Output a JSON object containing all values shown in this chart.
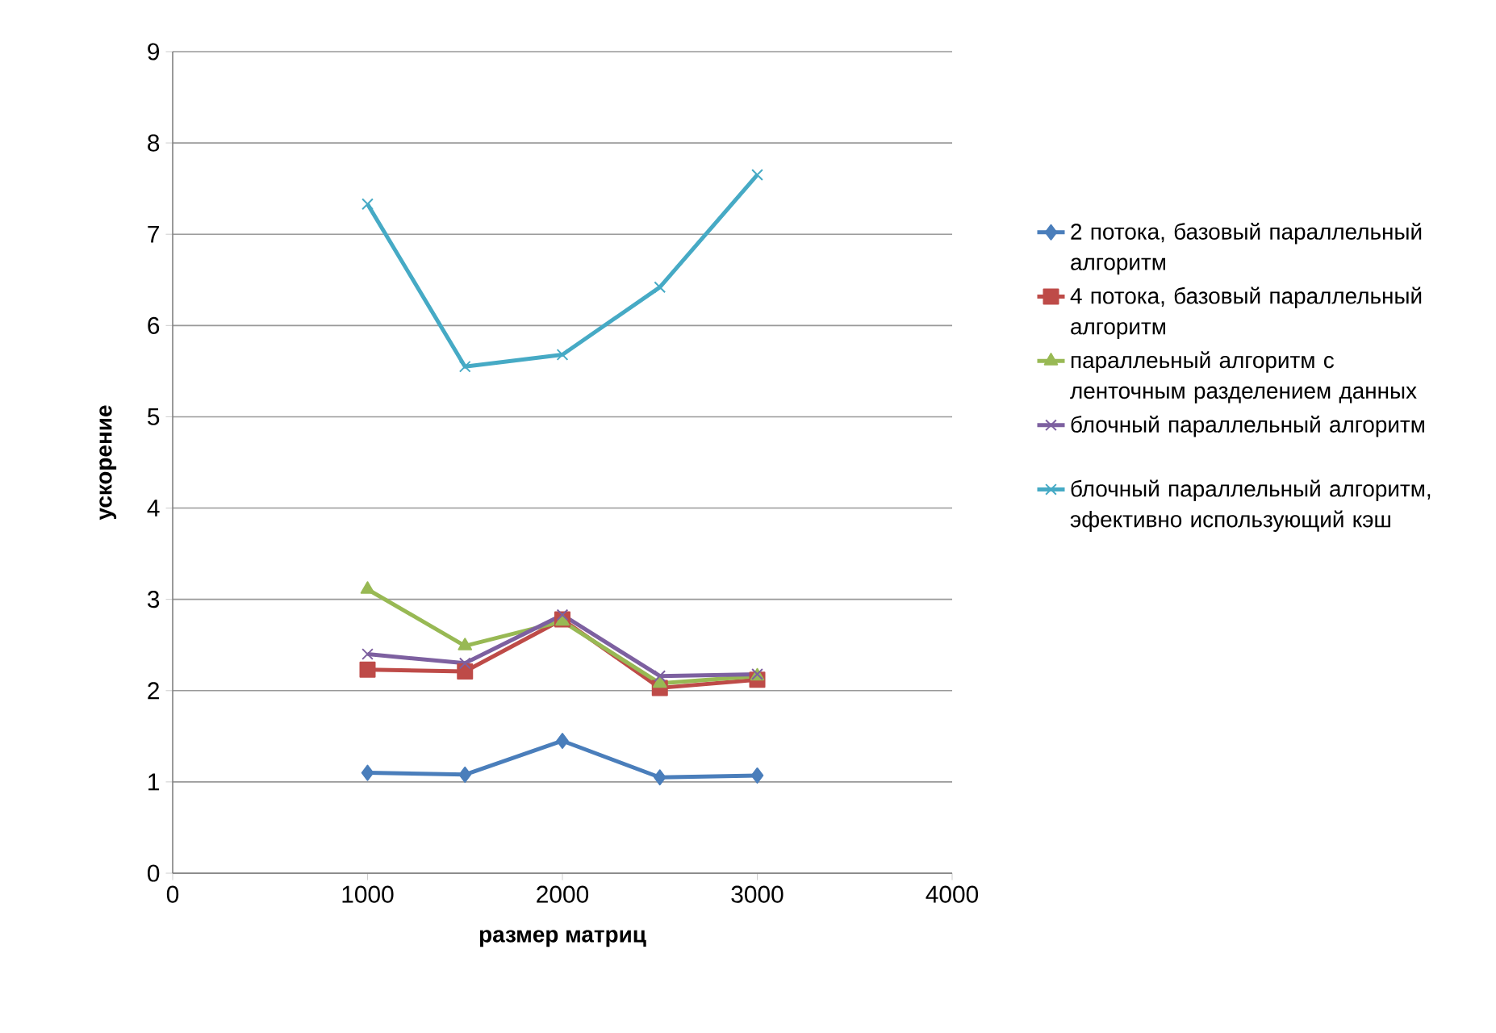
{
  "chart_data": {
    "type": "line",
    "xlabel": "размер матриц",
    "ylabel": "ускорение",
    "x": [
      1000,
      1500,
      2000,
      2500,
      3000
    ],
    "series": [
      {
        "name": "2 потока, базовый параллельный алгоритм",
        "color": "#4a7ebb",
        "marker": "diamond",
        "values": [
          1.1,
          1.08,
          1.45,
          1.05,
          1.07
        ]
      },
      {
        "name": "4 потока, базовый параллельный алгоритм",
        "color": "#be4b48",
        "marker": "square",
        "values": [
          2.23,
          2.21,
          2.78,
          2.03,
          2.12
        ]
      },
      {
        "name": "параллеьный алгоритм с ленточным разделением данных",
        "color": "#98b954",
        "marker": "triangle",
        "values": [
          3.11,
          2.49,
          2.76,
          2.08,
          2.16
        ]
      },
      {
        "name": "блочный параллельный алгоритм",
        "color": "#7d60a0",
        "marker": "cross",
        "values": [
          2.4,
          2.3,
          2.83,
          2.16,
          2.18
        ]
      },
      {
        "name": "блочный параллельный алгоритм, эфективно использующий кэш",
        "color": "#46aac5",
        "marker": "cross",
        "values": [
          7.33,
          5.55,
          5.68,
          6.42,
          7.65
        ]
      }
    ],
    "xlim": [
      0,
      4000
    ],
    "xticks": [
      0,
      1000,
      2000,
      3000,
      4000
    ],
    "ylim": [
      0,
      9
    ],
    "yticks": [
      0,
      1,
      2,
      3,
      4,
      5,
      6,
      7,
      8,
      9
    ],
    "grid": "y",
    "legend": "right",
    "line_style": "solid"
  }
}
